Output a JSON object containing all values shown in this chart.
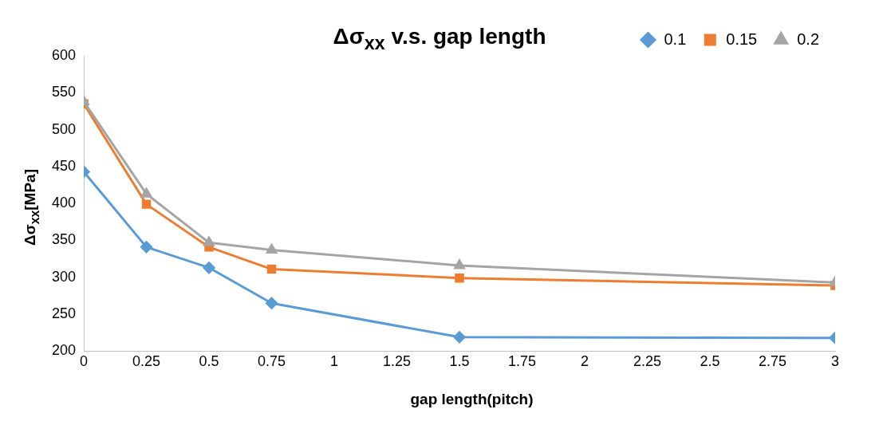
{
  "chart_data": {
    "type": "line",
    "title": "Δσ$_{xx}$ v.s. gap length",
    "xlabel": "gap length(pitch)",
    "ylabel": "Δσ$_{xx}$[MPa]",
    "x": [
      0,
      0.25,
      0.5,
      0.75,
      1.5,
      3
    ],
    "series": [
      {
        "name": "0.1",
        "color": "#5b9bd5",
        "marker": "diamond",
        "values": [
          443,
          341,
          313,
          265,
          219,
          218
        ]
      },
      {
        "name": "0.15",
        "color": "#ed7d31",
        "marker": "square",
        "values": [
          535,
          399,
          341,
          311,
          299,
          289
        ]
      },
      {
        "name": "0.2",
        "color": "#a5a5a5",
        "marker": "triangle",
        "values": [
          538,
          413,
          347,
          337,
          316,
          293
        ]
      }
    ],
    "xlim": [
      0,
      3
    ],
    "xticks": [
      0,
      0.25,
      0.5,
      0.75,
      1,
      1.25,
      1.5,
      1.75,
      2,
      2.25,
      2.5,
      2.75,
      3
    ],
    "ylim": [
      200,
      600
    ],
    "yticks": [
      200,
      250,
      300,
      350,
      400,
      450,
      500,
      550,
      600
    ],
    "grid": false,
    "legend": "top right",
    "line_style": "solid"
  }
}
